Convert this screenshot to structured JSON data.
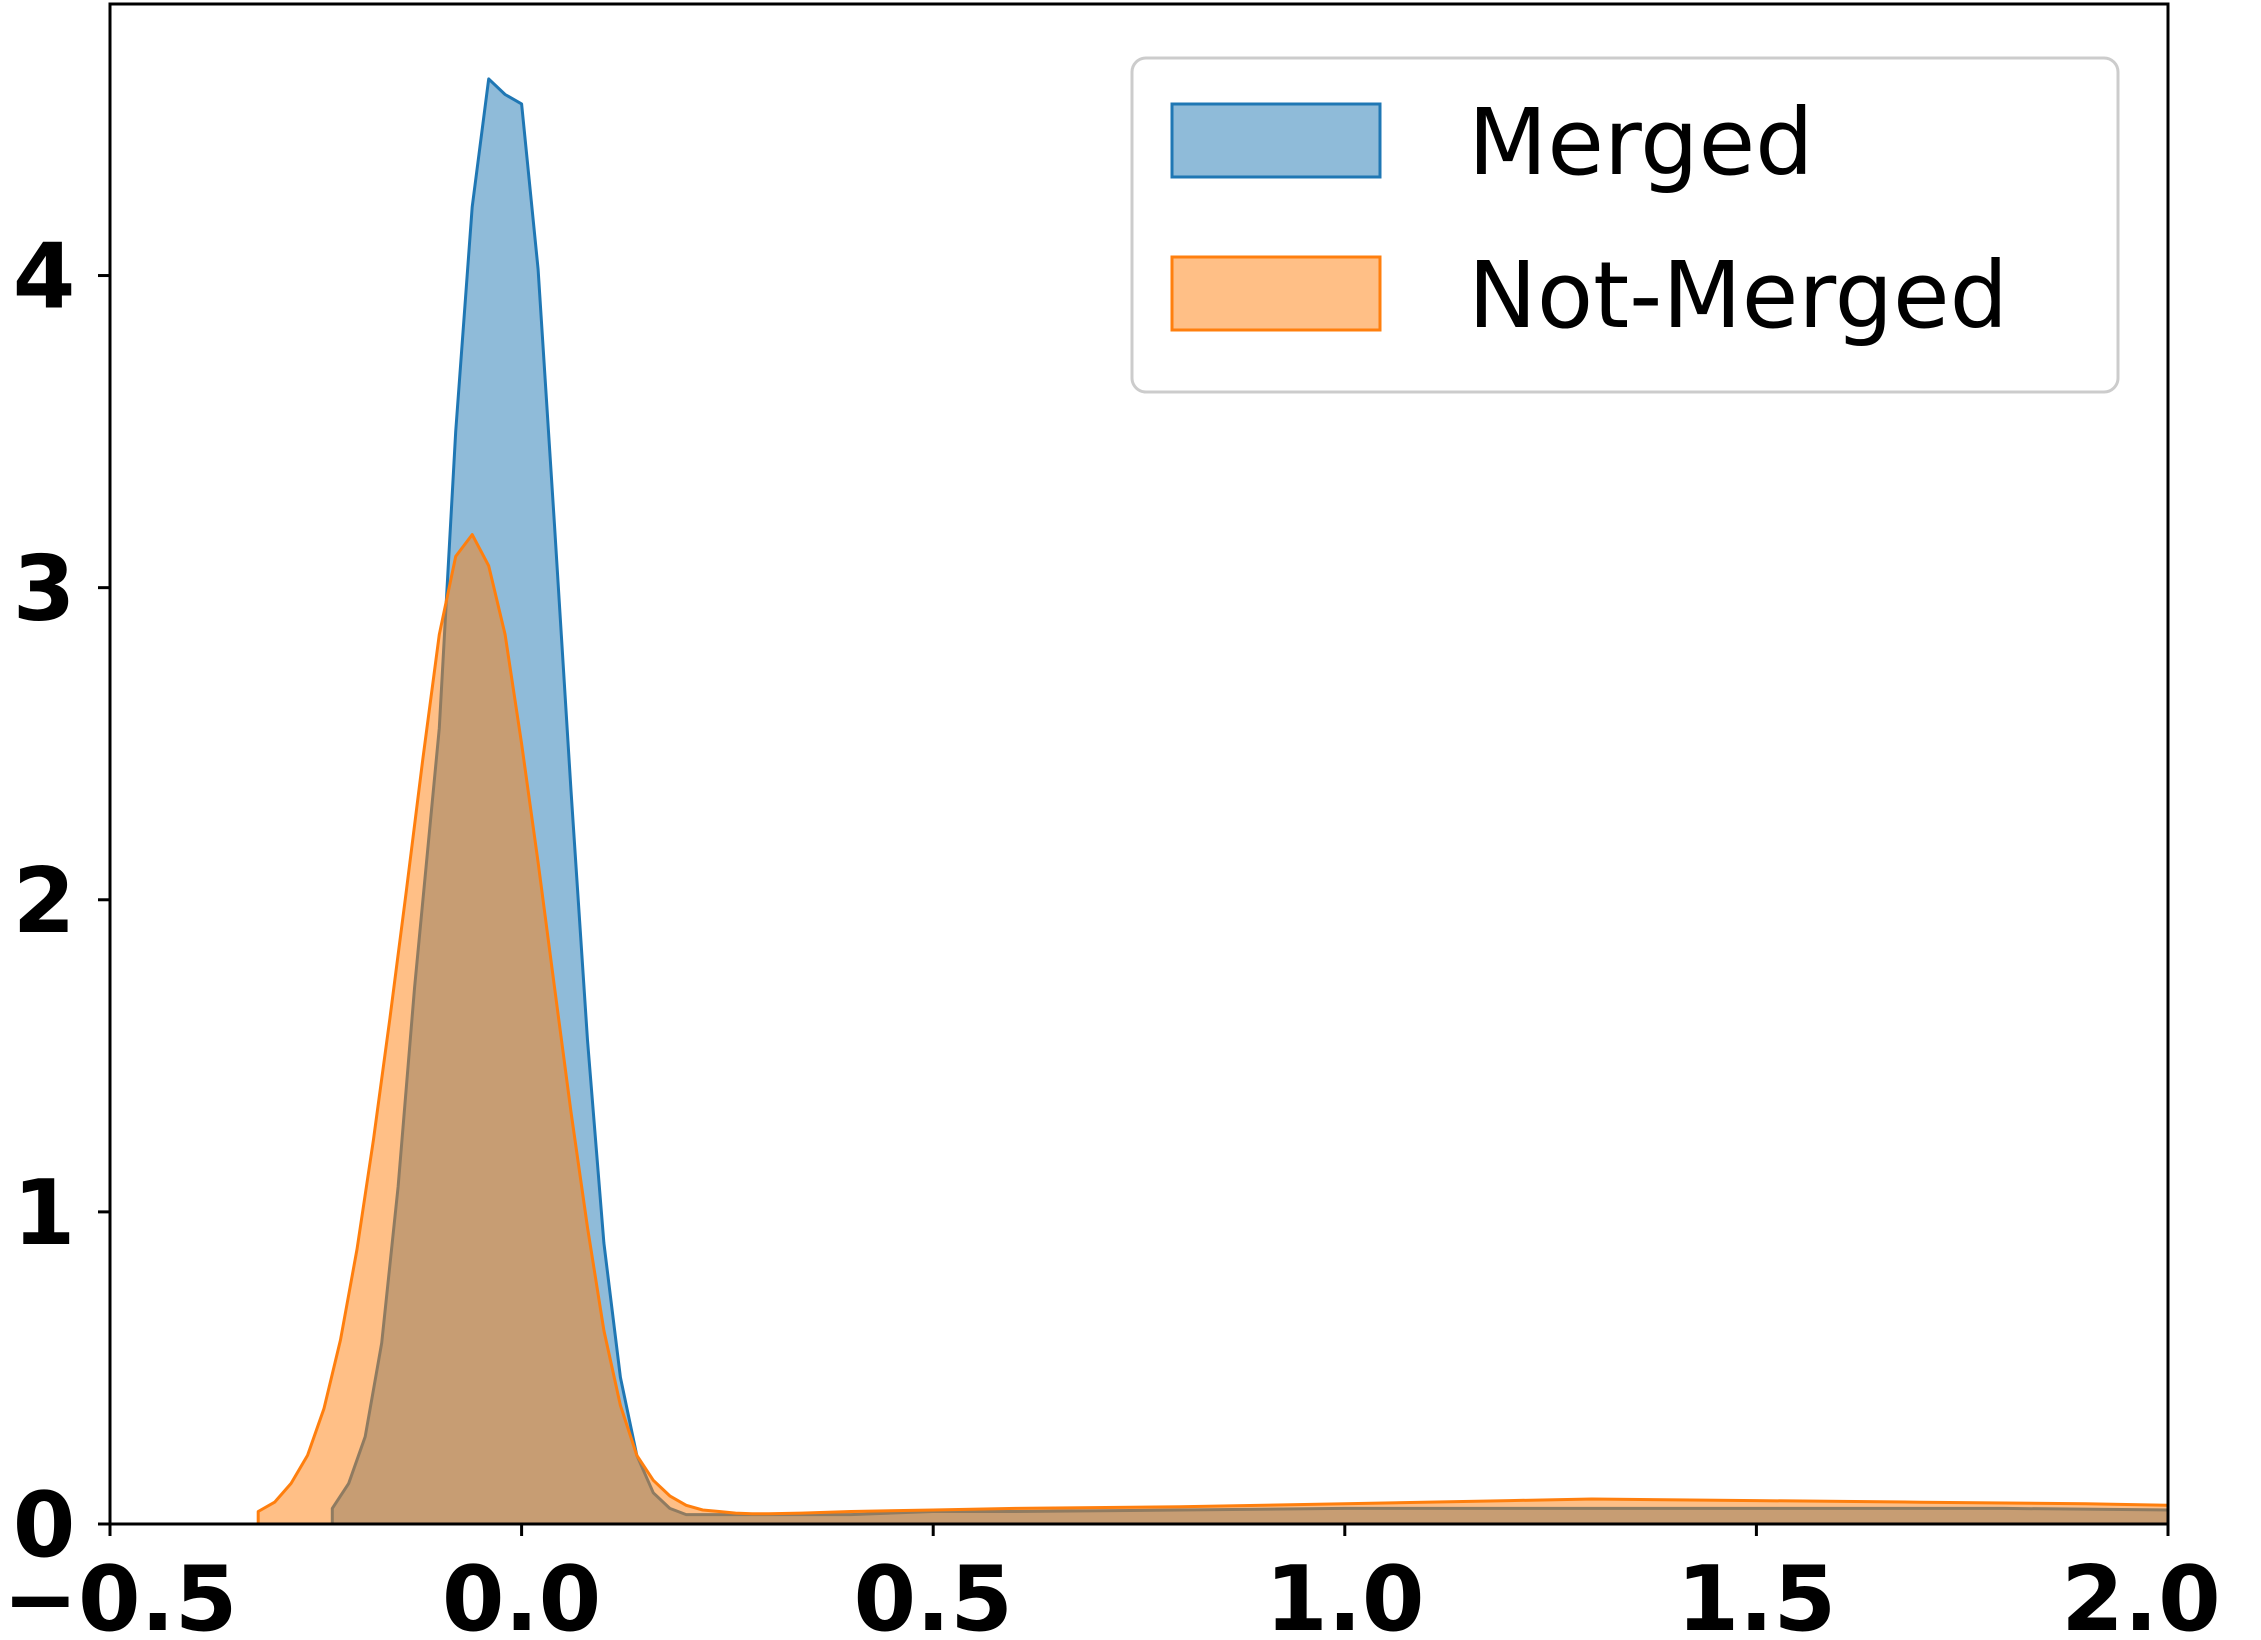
{
  "chart_data": {
    "type": "area",
    "title": "",
    "xlabel": "",
    "ylabel": "",
    "xlim": [
      -0.5,
      2.0
    ],
    "ylim": [
      0,
      4.87
    ],
    "xticks": [
      -0.5,
      0.0,
      0.5,
      1.0,
      1.5,
      2.0
    ],
    "xtick_labels": [
      "−0.5",
      "0.0",
      "0.5",
      "1.0",
      "1.5",
      "2.0"
    ],
    "yticks": [
      0,
      1,
      2,
      3,
      4
    ],
    "ytick_labels": [
      "0",
      "1",
      "2",
      "3",
      "4"
    ],
    "grid": false,
    "legend_position": "top-right",
    "series": [
      {
        "name": "Merged",
        "stroke": "#1f77b4",
        "fill": "#1f77b4",
        "x": [
          -0.23,
          -0.23,
          -0.21,
          -0.19,
          -0.17,
          -0.15,
          -0.13,
          -0.1,
          -0.08,
          -0.06,
          -0.04,
          -0.02,
          0.0,
          0.02,
          0.04,
          0.06,
          0.08,
          0.1,
          0.12,
          0.14,
          0.16,
          0.18,
          0.2,
          0.22,
          0.25,
          0.3,
          0.4,
          0.5,
          0.6,
          0.8,
          1.0,
          1.2,
          1.4,
          1.6,
          1.8,
          2.0
        ],
        "y": [
          0.0,
          0.05,
          0.13,
          0.28,
          0.58,
          1.08,
          1.72,
          2.55,
          3.5,
          4.22,
          4.63,
          4.58,
          4.55,
          4.02,
          3.2,
          2.35,
          1.55,
          0.9,
          0.47,
          0.22,
          0.1,
          0.05,
          0.03,
          0.03,
          0.03,
          0.03,
          0.03,
          0.04,
          0.04,
          0.045,
          0.05,
          0.05,
          0.05,
          0.05,
          0.05,
          0.045
        ]
      },
      {
        "name": "Not-Merged",
        "stroke": "#ff7f0e",
        "fill": "#ff7f0e",
        "x": [
          -0.32,
          -0.32,
          -0.3,
          -0.28,
          -0.26,
          -0.24,
          -0.22,
          -0.2,
          -0.18,
          -0.16,
          -0.14,
          -0.12,
          -0.1,
          -0.08,
          -0.06,
          -0.04,
          -0.02,
          0.0,
          0.02,
          0.04,
          0.06,
          0.08,
          0.1,
          0.12,
          0.14,
          0.16,
          0.18,
          0.2,
          0.22,
          0.24,
          0.26,
          0.28,
          0.3,
          0.34,
          0.4,
          0.5,
          0.6,
          0.8,
          1.0,
          1.2,
          1.3,
          1.5,
          1.7,
          1.9,
          2.0
        ],
        "y": [
          0.0,
          0.04,
          0.07,
          0.13,
          0.22,
          0.37,
          0.59,
          0.88,
          1.23,
          1.62,
          2.03,
          2.45,
          2.85,
          3.1,
          3.17,
          3.07,
          2.85,
          2.5,
          2.12,
          1.72,
          1.32,
          0.95,
          0.62,
          0.38,
          0.22,
          0.14,
          0.09,
          0.06,
          0.045,
          0.04,
          0.035,
          0.033,
          0.033,
          0.035,
          0.04,
          0.045,
          0.05,
          0.055,
          0.065,
          0.075,
          0.08,
          0.075,
          0.07,
          0.065,
          0.06
        ]
      }
    ]
  }
}
